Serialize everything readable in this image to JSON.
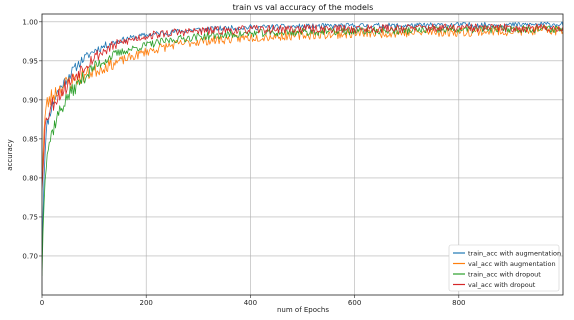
{
  "chart_data": {
    "type": "line",
    "title": "train vs val accuracy of the models",
    "xlabel": "num of Epochs",
    "ylabel": "accuracy",
    "xlim": [
      0,
      1000
    ],
    "ylim": [
      0.65,
      1.01
    ],
    "xticks": [
      0,
      200,
      400,
      600,
      800
    ],
    "yticks": [
      0.7,
      0.75,
      0.8,
      0.85,
      0.9,
      0.95,
      1.0
    ],
    "ytick_labels": [
      "0.70",
      "0.75",
      "0.80",
      "0.85",
      "0.90",
      "0.95",
      "1.00"
    ],
    "grid": true,
    "legend_position": "lower-right",
    "series": [
      {
        "name": "train_acc with augmentation",
        "color": "#1f77b4",
        "x": [
          0,
          5,
          10,
          20,
          30,
          50,
          75,
          100,
          130,
          160,
          200,
          250,
          300,
          400,
          500,
          600,
          700,
          800,
          900,
          1000
        ],
        "y": [
          0.7,
          0.83,
          0.87,
          0.895,
          0.91,
          0.93,
          0.95,
          0.963,
          0.972,
          0.978,
          0.983,
          0.987,
          0.99,
          0.993,
          0.994,
          0.995,
          0.995,
          0.996,
          0.996,
          0.997
        ]
      },
      {
        "name": "val_acc with augmentation",
        "color": "#ff7f0e",
        "x": [
          0,
          5,
          10,
          20,
          30,
          50,
          75,
          100,
          130,
          160,
          200,
          250,
          300,
          400,
          500,
          600,
          700,
          800,
          900,
          1000
        ],
        "y": [
          0.8,
          0.875,
          0.895,
          0.905,
          0.912,
          0.922,
          0.93,
          0.937,
          0.945,
          0.952,
          0.962,
          0.97,
          0.975,
          0.98,
          0.983,
          0.985,
          0.986,
          0.987,
          0.988,
          0.989
        ]
      },
      {
        "name": "train_acc with dropout",
        "color": "#2ca02c",
        "x": [
          0,
          5,
          10,
          20,
          30,
          50,
          75,
          100,
          130,
          160,
          200,
          250,
          300,
          400,
          500,
          600,
          700,
          800,
          900,
          1000
        ],
        "y": [
          0.68,
          0.8,
          0.835,
          0.86,
          0.88,
          0.905,
          0.925,
          0.942,
          0.955,
          0.963,
          0.97,
          0.977,
          0.981,
          0.985,
          0.987,
          0.988,
          0.989,
          0.99,
          0.991,
          0.991
        ]
      },
      {
        "name": "val_acc with dropout",
        "color": "#d62728",
        "x": [
          0,
          5,
          10,
          20,
          30,
          50,
          75,
          100,
          130,
          160,
          200,
          250,
          300,
          400,
          500,
          600,
          700,
          800,
          900,
          1000
        ],
        "y": [
          0.79,
          0.86,
          0.88,
          0.895,
          0.905,
          0.92,
          0.94,
          0.955,
          0.967,
          0.975,
          0.982,
          0.986,
          0.988,
          0.99,
          0.991,
          0.991,
          0.992,
          0.992,
          0.992,
          0.992
        ]
      }
    ]
  }
}
